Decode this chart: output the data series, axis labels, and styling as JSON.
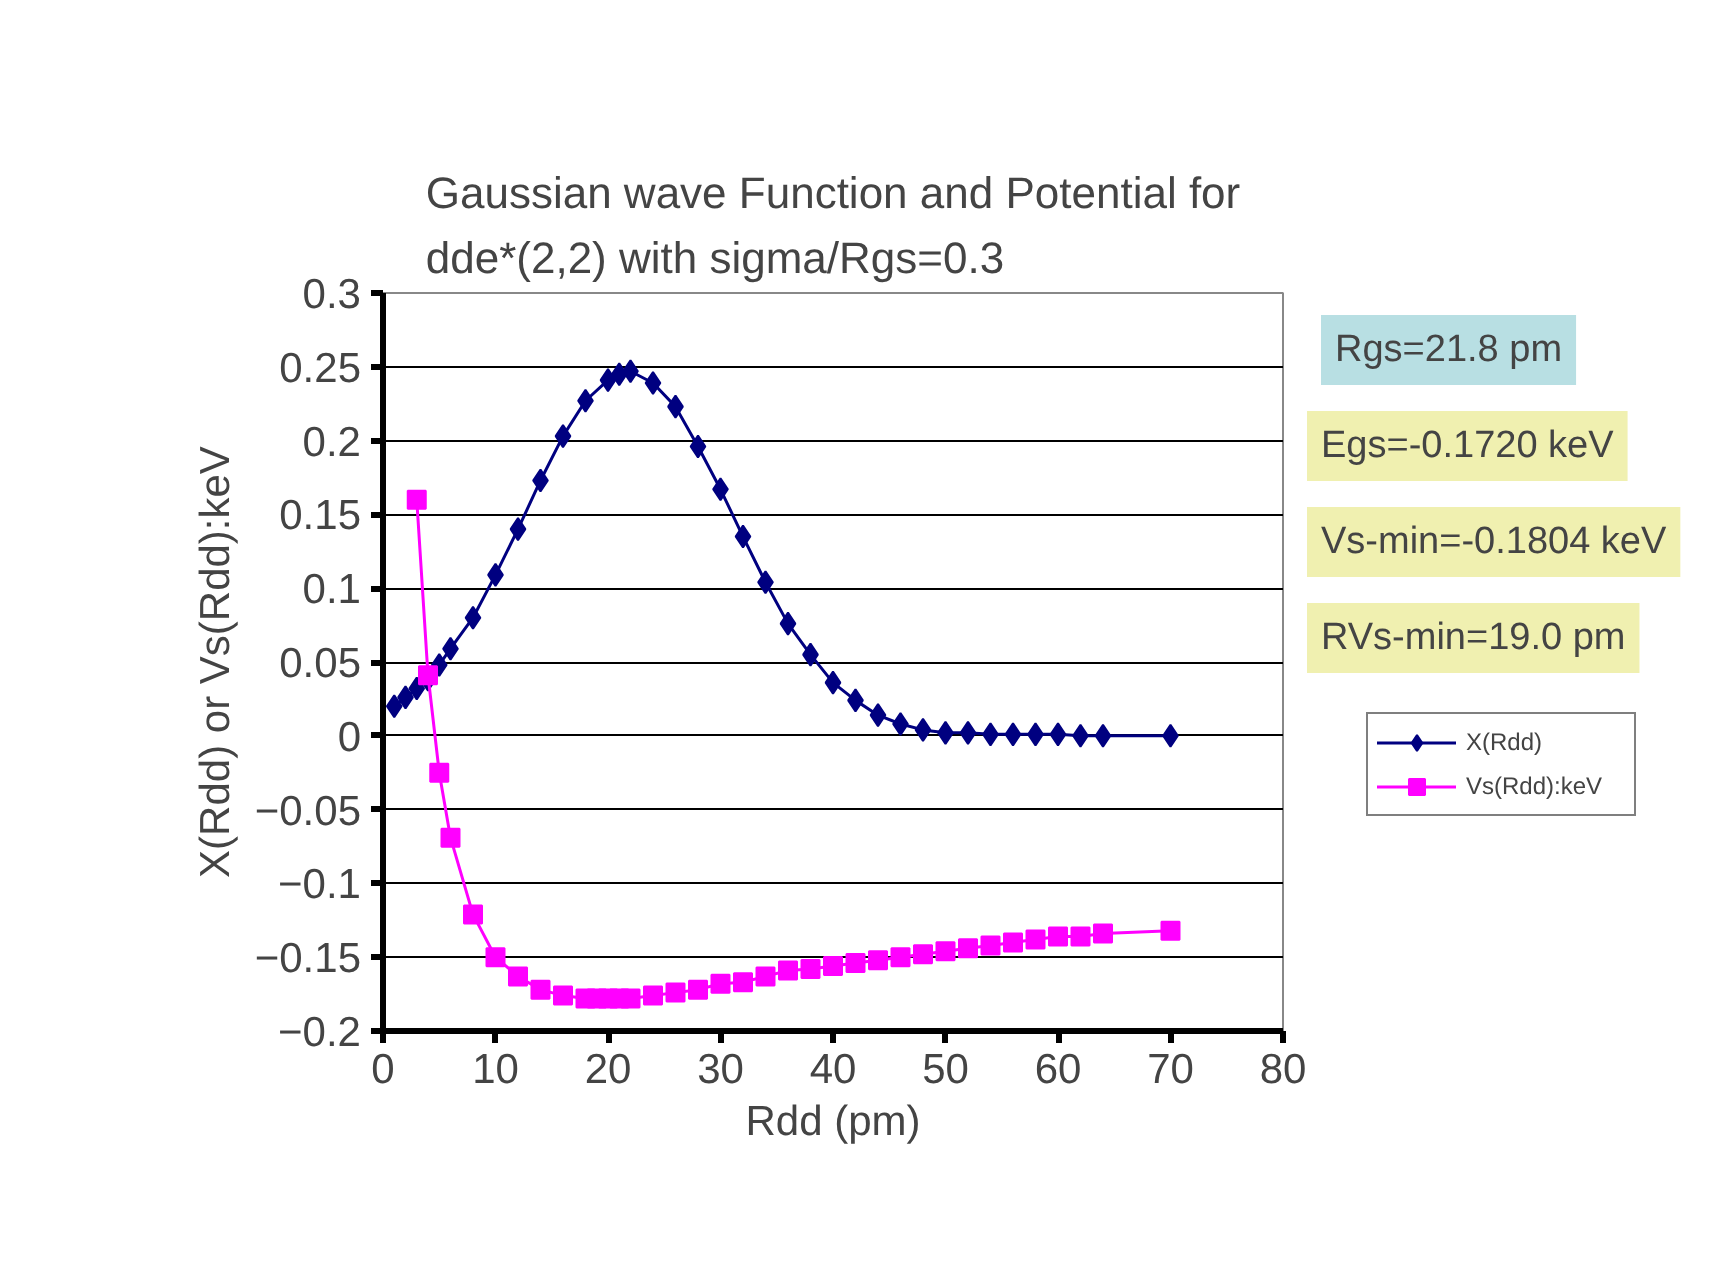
{
  "chart_data": {
    "type": "line",
    "title": "Gaussian wave Function and Potential for\ndde*(2,2) with sigma/Rgs=0.3",
    "xlabel": "Rdd (pm)",
    "ylabel": "X(Rdd) or Vs(Rdd):keV",
    "xlim": [
      0,
      80
    ],
    "xticks": [
      0,
      10,
      20,
      30,
      40,
      50,
      60,
      70,
      80
    ],
    "ylim": [
      -0.2,
      0.3
    ],
    "yticks": [
      {
        "value": -0.2,
        "label": "−0.2"
      },
      {
        "value": -0.15,
        "label": "−0.15"
      },
      {
        "value": -0.1,
        "label": "−0.1"
      },
      {
        "value": -0.05,
        "label": "−0.05"
      },
      0,
      0.05,
      0.1,
      0.15,
      0.2,
      0.25,
      0.3
    ],
    "grid": "y",
    "legend": "right",
    "annotations": [
      "Rgs=21.8 pm",
      "Egs=-0.1720 keV",
      "Vs-min=-0.1804 keV",
      "RVs-min=19.0 pm"
    ],
    "series": [
      {
        "name": "X(Rdd)",
        "color": "#000080",
        "marker": "diamond",
        "x": [
          1,
          2,
          3,
          4,
          5,
          6,
          8,
          10,
          12,
          14,
          16,
          18,
          20,
          21,
          22,
          24,
          26,
          28,
          30,
          32,
          34,
          36,
          38,
          40,
          42,
          44,
          46,
          48,
          50,
          52,
          54,
          56,
          58,
          60,
          62,
          64,
          70
        ],
        "values": [
          0.02,
          0.026,
          0.032,
          0.038,
          0.048,
          0.059,
          0.08,
          0.109,
          0.14,
          0.173,
          0.203,
          0.227,
          0.241,
          0.245,
          0.247,
          0.239,
          0.223,
          0.196,
          0.167,
          0.135,
          0.104,
          0.076,
          0.055,
          0.036,
          0.024,
          0.014,
          0.008,
          0.004,
          0.002,
          0.002,
          0.001,
          0.001,
          0.001,
          0.001,
          0,
          0,
          0
        ]
      },
      {
        "name": "Vs(Rdd):keV",
        "color": "#ff00ff",
        "marker": "square",
        "x": [
          3,
          4,
          5,
          6,
          8,
          10,
          12,
          14,
          16,
          18,
          19,
          20,
          21,
          22,
          24,
          26,
          28,
          30,
          32,
          34,
          36,
          38,
          40,
          42,
          44,
          46,
          48,
          50,
          52,
          54,
          56,
          58,
          60,
          62,
          64,
          70
        ],
        "values": [
          0.16,
          0.041,
          -0.025,
          -0.069,
          -0.121,
          -0.15,
          -0.163,
          -0.172,
          -0.176,
          -0.178,
          -0.178,
          -0.178,
          -0.178,
          -0.178,
          -0.176,
          -0.174,
          -0.172,
          -0.168,
          -0.167,
          -0.163,
          -0.159,
          -0.158,
          -0.156,
          -0.154,
          -0.152,
          -0.15,
          -0.148,
          -0.146,
          -0.144,
          -0.142,
          -0.14,
          -0.138,
          -0.136,
          -0.136,
          -0.134,
          -0.132
        ]
      }
    ]
  }
}
